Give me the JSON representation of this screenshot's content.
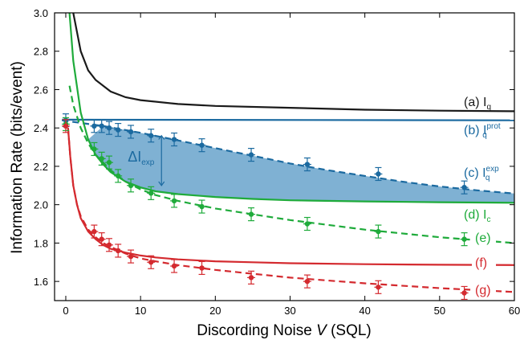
{
  "chart_data": {
    "type": "line",
    "title": "",
    "xlabel_prefix": "Discording Noise ",
    "xlabel_var": "V",
    "xlabel_suffix": " (SQL)",
    "ylabel": "Information Rate (bits/event)",
    "xlim": [
      -1.5,
      60
    ],
    "ylim": [
      1.5,
      3.0
    ],
    "x_ticks": [
      0,
      10,
      20,
      30,
      40,
      50,
      60
    ],
    "y_ticks": [
      1.6,
      1.8,
      2.0,
      2.2,
      2.4,
      2.6,
      2.8,
      3.0
    ],
    "grid": false,
    "colors": {
      "black": "#1a1a1a",
      "blue": "#1b6aa0",
      "green": "#1fab3b",
      "red": "#d42a2f",
      "shade": "#7fb1d3"
    },
    "annotations": {
      "delta_main": "ΔI",
      "delta_sub": "exp"
    },
    "series": [
      {
        "key": "a",
        "label_prefix": "(a) I",
        "label_sub": "q",
        "label_sup": "",
        "color": "black",
        "style": "solid",
        "x": [
          1.0,
          2,
          3,
          4,
          6,
          8,
          10,
          15,
          20,
          30,
          40,
          50,
          60
        ],
        "y": [
          3.0,
          2.8,
          2.7,
          2.65,
          2.59,
          2.56,
          2.545,
          2.525,
          2.515,
          2.505,
          2.495,
          2.49,
          2.487
        ]
      },
      {
        "key": "b",
        "label_prefix": "(b) I",
        "label_sub": "q",
        "label_sup": "prot",
        "color": "blue",
        "style": "solid",
        "x": [
          -0.5,
          60
        ],
        "y": [
          2.443,
          2.44
        ]
      },
      {
        "key": "c",
        "label_prefix": "(c) I",
        "label_sub": "q",
        "label_sup": "exp",
        "color": "blue",
        "style": "dashed",
        "x": [
          -0.5,
          5,
          10,
          15,
          20,
          25,
          30,
          35,
          40,
          45,
          50,
          55,
          60
        ],
        "y": [
          2.44,
          2.41,
          2.375,
          2.335,
          2.295,
          2.255,
          2.215,
          2.18,
          2.15,
          2.12,
          2.095,
          2.075,
          2.058
        ],
        "points": {
          "x": [
            0.0,
            3.8,
            4.8,
            5.8,
            7.0,
            8.7,
            11.4,
            14.5,
            18.2,
            24.8,
            32.3,
            41.8,
            53.3
          ],
          "y": [
            2.44,
            2.41,
            2.41,
            2.4,
            2.39,
            2.38,
            2.36,
            2.34,
            2.31,
            2.26,
            2.21,
            2.16,
            2.09
          ]
        }
      },
      {
        "key": "d",
        "label_prefix": "(d) I",
        "label_sub": "c",
        "label_sup": "",
        "color": "green",
        "style": "solid",
        "x": [
          0.5,
          1,
          2,
          3,
          4,
          5,
          6,
          8,
          10,
          12,
          15,
          20,
          25,
          30,
          40,
          50,
          60
        ],
        "y": [
          3.0,
          2.75,
          2.48,
          2.34,
          2.26,
          2.21,
          2.17,
          2.12,
          2.09,
          2.07,
          2.055,
          2.04,
          2.03,
          2.023,
          2.017,
          2.013,
          2.01
        ]
      },
      {
        "key": "e",
        "label_prefix": "(e)",
        "label_sub": "",
        "label_sup": "",
        "color": "green",
        "style": "dashed",
        "x": [
          0.5,
          1,
          2,
          3,
          4,
          5,
          6,
          8,
          10,
          12,
          15,
          20,
          25,
          30,
          40,
          50,
          60
        ],
        "y": [
          2.62,
          2.52,
          2.4,
          2.32,
          2.26,
          2.22,
          2.18,
          2.12,
          2.08,
          2.05,
          2.02,
          1.98,
          1.95,
          1.92,
          1.87,
          1.83,
          1.8
        ],
        "points": {
          "x": [
            0.0,
            3.8,
            4.8,
            5.8,
            7.0,
            8.7,
            11.4,
            14.5,
            18.2,
            24.8,
            32.3,
            41.8,
            53.3
          ],
          "y": [
            2.42,
            2.29,
            2.24,
            2.22,
            2.15,
            2.1,
            2.06,
            2.02,
            1.99,
            1.95,
            1.9,
            1.86,
            1.82
          ]
        }
      },
      {
        "key": "f",
        "label_prefix": "(f)",
        "label_sub": "",
        "label_sup": "",
        "color": "red",
        "style": "solid",
        "x": [
          0.3,
          0.6,
          1,
          1.5,
          2,
          3,
          4,
          5,
          6,
          8,
          10,
          12,
          15,
          20,
          25,
          30,
          40,
          50,
          60
        ],
        "y": [
          2.4,
          2.25,
          2.1,
          2.0,
          1.93,
          1.86,
          1.82,
          1.79,
          1.77,
          1.75,
          1.735,
          1.725,
          1.715,
          1.705,
          1.7,
          1.695,
          1.69,
          1.687,
          1.685
        ]
      },
      {
        "key": "g",
        "label_prefix": "(g)",
        "label_sub": "",
        "label_sup": "",
        "color": "red",
        "style": "dashed",
        "x": [
          0.3,
          0.6,
          1,
          1.5,
          2,
          3,
          4,
          5,
          6,
          8,
          10,
          12,
          15,
          20,
          25,
          30,
          40,
          50,
          60
        ],
        "y": [
          2.4,
          2.25,
          2.1,
          2.0,
          1.94,
          1.87,
          1.83,
          1.8,
          1.78,
          1.745,
          1.72,
          1.705,
          1.685,
          1.66,
          1.64,
          1.62,
          1.59,
          1.565,
          1.545
        ],
        "points": {
          "x": [
            0.0,
            3.8,
            4.8,
            5.8,
            7.0,
            8.7,
            11.4,
            14.5,
            18.2,
            24.8,
            32.3,
            41.8,
            53.3
          ],
          "y": [
            2.41,
            1.86,
            1.82,
            1.79,
            1.76,
            1.73,
            1.7,
            1.68,
            1.67,
            1.62,
            1.6,
            1.57,
            1.54
          ]
        }
      }
    ]
  }
}
